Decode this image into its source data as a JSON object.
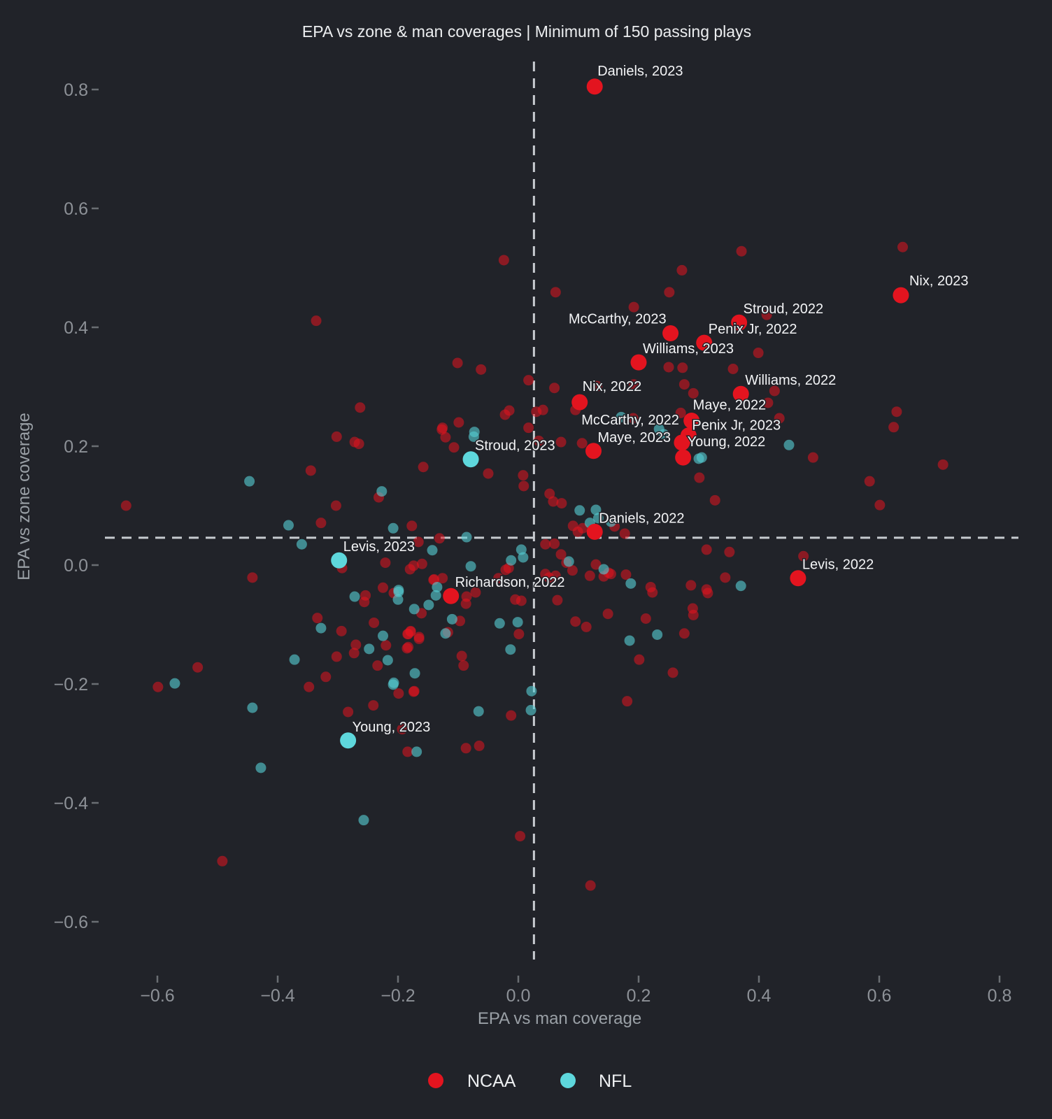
{
  "chart_data": {
    "type": "scatter",
    "title": "EPA vs zone & man coverages | Minimum of 150 passing plays",
    "xlabel": "EPA vs man coverage",
    "ylabel": "EPA vs zone coverage",
    "xlim": [
      -0.72,
      0.85
    ],
    "ylim": [
      -0.63,
      0.85
    ],
    "grid": false,
    "legend_position": "bottom-center",
    "x_ticks": [
      {
        "v": -0.6,
        "label": "−0.6"
      },
      {
        "v": -0.4,
        "label": "−0.4"
      },
      {
        "v": -0.2,
        "label": "−0.2"
      },
      {
        "v": 0.0,
        "label": "0.0"
      },
      {
        "v": 0.2,
        "label": "0.2"
      },
      {
        "v": 0.4,
        "label": "0.4"
      },
      {
        "v": 0.6,
        "label": "0.6"
      },
      {
        "v": 0.8,
        "label": "0.8"
      }
    ],
    "y_ticks": [
      {
        "v": 0.8,
        "label": "0.8"
      },
      {
        "v": 0.6,
        "label": "0.6"
      },
      {
        "v": 0.4,
        "label": "0.4"
      },
      {
        "v": 0.2,
        "label": "0.2"
      },
      {
        "v": 0.0,
        "label": "0.0"
      },
      {
        "v": -0.2,
        "label": "−0.2"
      },
      {
        "v": -0.4,
        "label": "−0.4"
      },
      {
        "v": -0.6,
        "label": "−0.6"
      }
    ],
    "reference_lines": {
      "x": 0.026,
      "y": 0.046
    },
    "colors": {
      "background": "#212329",
      "ncaa": "#e3141f",
      "nfl": "#56ccd2",
      "nfl_bright": "#5ed7dc",
      "dash_line": "#c7cbd0",
      "tick_mark": "#6a6e73",
      "text_primary": "#eceef0",
      "text_muted": "#8d9197"
    },
    "legend": [
      {
        "label": "NCAA",
        "league": "ncaa"
      },
      {
        "label": "NFL",
        "league": "nfl"
      }
    ],
    "labeled_points": [
      {
        "label": "Daniels, 2023",
        "league": "ncaa",
        "x": 0.127,
        "y": 0.805
      },
      {
        "label": "Nix, 2023",
        "league": "ncaa",
        "x": 0.636,
        "y": 0.454
      },
      {
        "label": "Stroud, 2022",
        "league": "ncaa",
        "x": 0.367,
        "y": 0.408
      },
      {
        "label": "McCarthy, 2023",
        "league": "ncaa",
        "x": 0.253,
        "y": 0.39
      },
      {
        "label": "Penix Jr, 2022",
        "league": "ncaa",
        "x": 0.309,
        "y": 0.374
      },
      {
        "label": "Williams, 2023",
        "league": "ncaa",
        "x": 0.2,
        "y": 0.341
      },
      {
        "label": "Williams, 2022",
        "league": "ncaa",
        "x": 0.37,
        "y": 0.288
      },
      {
        "label": "Nix, 2022",
        "league": "ncaa",
        "x": 0.102,
        "y": 0.274
      },
      {
        "label": "Maye, 2022",
        "league": "ncaa",
        "x": 0.288,
        "y": 0.243
      },
      {
        "label": "Penix Jr, 2023",
        "league": "ncaa",
        "x": 0.283,
        "y": 0.218
      },
      {
        "label": "McCarthy, 2022",
        "league": "ncaa",
        "x": 0.272,
        "y": 0.206
      },
      {
        "label": "Maye, 2023",
        "league": "ncaa",
        "x": 0.125,
        "y": 0.192
      },
      {
        "label": "Young, 2022",
        "league": "ncaa",
        "x": 0.274,
        "y": 0.181
      },
      {
        "label": "Stroud, 2023",
        "league": "nfl",
        "x": -0.079,
        "y": 0.178
      },
      {
        "label": "Daniels, 2022",
        "league": "ncaa",
        "x": 0.127,
        "y": 0.056
      },
      {
        "label": "Levis, 2023",
        "league": "nfl",
        "x": -0.298,
        "y": 0.008
      },
      {
        "label": "Levis, 2022",
        "league": "ncaa",
        "x": 0.465,
        "y": -0.022
      },
      {
        "label": "Richardson, 2022",
        "league": "ncaa",
        "x": -0.112,
        "y": -0.052
      },
      {
        "label": "Young, 2023",
        "league": "nfl",
        "x": -0.283,
        "y": -0.295
      }
    ],
    "ncaa_points": [
      [
        -0.336,
        0.411
      ],
      [
        -0.263,
        0.265
      ],
      [
        -0.302,
        0.216
      ],
      [
        -0.272,
        0.207
      ],
      [
        -0.265,
        0.204
      ],
      [
        -0.345,
        0.159
      ],
      [
        -0.158,
        0.165
      ],
      [
        -0.652,
        0.1
      ],
      [
        -0.328,
        0.071
      ],
      [
        -0.303,
        0.1
      ],
      [
        -0.232,
        0.114
      ],
      [
        -0.177,
        0.066
      ],
      [
        -0.293,
        -0.005
      ],
      [
        -0.221,
        0.004
      ],
      [
        -0.18,
        -0.007
      ],
      [
        -0.174,
        -0.001
      ],
      [
        -0.166,
        0.039
      ],
      [
        -0.442,
        -0.021
      ],
      [
        -0.225,
        -0.038
      ],
      [
        -0.207,
        -0.047
      ],
      [
        -0.254,
        -0.051
      ],
      [
        -0.256,
        -0.062
      ],
      [
        -0.161,
        -0.081
      ],
      [
        -0.334,
        -0.089
      ],
      [
        -0.294,
        -0.111
      ],
      [
        -0.24,
        -0.097
      ],
      [
        -0.27,
        -0.134
      ],
      [
        -0.273,
        -0.148
      ],
      [
        -0.22,
        -0.135
      ],
      [
        -0.183,
        -0.116
      ],
      [
        -0.179,
        -0.112
      ],
      [
        -0.183,
        -0.138
      ],
      [
        -0.165,
        -0.121
      ],
      [
        -0.302,
        -0.154
      ],
      [
        -0.234,
        -0.169
      ],
      [
        -0.32,
        -0.188
      ],
      [
        -0.348,
        -0.205
      ],
      [
        -0.533,
        -0.172
      ],
      [
        -0.599,
        -0.205
      ],
      [
        -0.199,
        -0.216
      ],
      [
        -0.174,
        -0.213
      ],
      [
        -0.241,
        -0.236
      ],
      [
        -0.283,
        -0.247
      ],
      [
        -0.024,
        0.513
      ],
      [
        0.062,
        0.459
      ],
      [
        0.272,
        0.496
      ],
      [
        0.251,
        0.459
      ],
      [
        0.192,
        0.434
      ],
      [
        0.25,
        0.333
      ],
      [
        0.273,
        0.332
      ],
      [
        -0.101,
        0.34
      ],
      [
        -0.062,
        0.329
      ],
      [
        0.017,
        0.311
      ],
      [
        0.06,
        0.298
      ],
      [
        0.131,
        0.301
      ],
      [
        0.095,
        0.261
      ],
      [
        0.192,
        0.304
      ],
      [
        0.276,
        0.304
      ],
      [
        0.291,
        0.289
      ],
      [
        0.041,
        0.261
      ],
      [
        0.03,
        0.258
      ],
      [
        -0.015,
        0.26
      ],
      [
        -0.022,
        0.253
      ],
      [
        -0.099,
        0.24
      ],
      [
        -0.126,
        0.231
      ],
      [
        0.191,
        0.247
      ],
      [
        0.27,
        0.256
      ],
      [
        0.017,
        0.231
      ],
      [
        0.106,
        0.205
      ],
      [
        0.371,
        0.528
      ],
      [
        0.639,
        0.535
      ],
      [
        0.413,
        0.421
      ],
      [
        0.399,
        0.357
      ],
      [
        0.357,
        0.33
      ],
      [
        0.415,
        0.273
      ],
      [
        0.434,
        0.247
      ],
      [
        0.426,
        0.293
      ],
      [
        0.629,
        0.258
      ],
      [
        0.624,
        0.232
      ],
      [
        0.706,
        0.169
      ],
      [
        0.584,
        0.141
      ],
      [
        0.601,
        0.101
      ],
      [
        0.49,
        0.181
      ],
      [
        0.327,
        0.109
      ],
      [
        0.301,
        0.147
      ],
      [
        0.313,
        0.026
      ],
      [
        0.351,
        0.022
      ],
      [
        0.474,
        0.015
      ],
      [
        0.344,
        -0.021
      ],
      [
        0.315,
        -0.047
      ],
      [
        -0.05,
        0.154
      ],
      [
        0.008,
        0.151
      ],
      [
        0.009,
        0.133
      ],
      [
        0.034,
        0.209
      ],
      [
        0.071,
        0.207
      ],
      [
        0.052,
        0.12
      ],
      [
        0.058,
        0.107
      ],
      [
        0.072,
        0.104
      ],
      [
        0.091,
        0.066
      ],
      [
        0.099,
        0.056
      ],
      [
        0.107,
        0.062
      ],
      [
        0.045,
        0.035
      ],
      [
        0.06,
        0.036
      ],
      [
        0.16,
        0.065
      ],
      [
        0.177,
        0.053
      ],
      [
        0.071,
        0.018
      ],
      [
        0.08,
        0.004
      ],
      [
        0.09,
        -0.009
      ],
      [
        0.142,
        -0.019
      ],
      [
        0.154,
        -0.015
      ],
      [
        0.179,
        -0.016
      ],
      [
        0.129,
        0.001
      ],
      [
        0.045,
        -0.015
      ],
      [
        0.051,
        -0.021
      ],
      [
        -0.021,
        -0.008
      ],
      [
        -0.016,
        -0.005
      ],
      [
        -0.107,
        0.198
      ],
      [
        -0.121,
        0.215
      ],
      [
        -0.127,
        0.228
      ],
      [
        -0.131,
        0.045
      ],
      [
        -0.16,
        0.002
      ],
      [
        -0.141,
        -0.025
      ],
      [
        -0.126,
        -0.022
      ],
      [
        -0.14,
        -0.024
      ],
      [
        -0.086,
        -0.053
      ],
      [
        -0.087,
        -0.065
      ],
      [
        -0.071,
        -0.046
      ],
      [
        -0.033,
        -0.022
      ],
      [
        -0.005,
        -0.058
      ],
      [
        0.005,
        -0.06
      ],
      [
        -0.097,
        -0.094
      ],
      [
        0.001,
        -0.116
      ],
      [
        -0.117,
        -0.113
      ],
      [
        -0.179,
        -0.111
      ],
      [
        -0.184,
        -0.116
      ],
      [
        -0.165,
        -0.124
      ],
      [
        -0.185,
        -0.14
      ],
      [
        -0.094,
        -0.153
      ],
      [
        -0.091,
        -0.169
      ],
      [
        -0.173,
        -0.212
      ],
      [
        -0.012,
        -0.253
      ],
      [
        -0.087,
        -0.308
      ],
      [
        -0.065,
        -0.304
      ],
      [
        -0.184,
        -0.314
      ],
      [
        0.062,
        -0.018
      ],
      [
        0.065,
        -0.059
      ],
      [
        0.119,
        -0.018
      ],
      [
        0.095,
        -0.095
      ],
      [
        0.113,
        -0.104
      ],
      [
        0.149,
        -0.082
      ],
      [
        0.22,
        -0.037
      ],
      [
        0.223,
        -0.046
      ],
      [
        0.212,
        -0.09
      ],
      [
        0.201,
        -0.159
      ],
      [
        0.257,
        -0.181
      ],
      [
        0.181,
        -0.229
      ],
      [
        0.287,
        -0.034
      ],
      [
        0.313,
        -0.041
      ],
      [
        0.29,
        -0.073
      ],
      [
        0.291,
        -0.084
      ],
      [
        0.276,
        -0.115
      ],
      [
        0.15,
        -0.013
      ],
      [
        -0.193,
        -0.276
      ],
      [
        -0.492,
        -0.498
      ],
      [
        0.003,
        -0.456
      ],
      [
        0.12,
        -0.539
      ]
    ],
    "nfl_points": [
      [
        -0.447,
        0.141
      ],
      [
        -0.382,
        0.067
      ],
      [
        -0.227,
        0.124
      ],
      [
        -0.208,
        0.062
      ],
      [
        -0.36,
        0.035
      ],
      [
        -0.143,
        0.025
      ],
      [
        -0.199,
        -0.045
      ],
      [
        -0.272,
        -0.053
      ],
      [
        -0.173,
        -0.074
      ],
      [
        -0.149,
        -0.067
      ],
      [
        -0.328,
        -0.106
      ],
      [
        -0.248,
        -0.141
      ],
      [
        -0.225,
        -0.119
      ],
      [
        -0.217,
        -0.16
      ],
      [
        -0.372,
        -0.159
      ],
      [
        -0.172,
        -0.182
      ],
      [
        -0.571,
        -0.199
      ],
      [
        -0.208,
        -0.201
      ],
      [
        -0.442,
        -0.24
      ],
      [
        -0.428,
        -0.341
      ],
      [
        -0.257,
        -0.429
      ],
      [
        0.171,
        0.249
      ],
      [
        0.234,
        0.229
      ],
      [
        0.242,
        0.22
      ],
      [
        0.3,
        0.179
      ],
      [
        0.45,
        0.202
      ],
      [
        0.305,
        0.181
      ],
      [
        0.37,
        -0.035
      ],
      [
        -0.074,
        0.216
      ],
      [
        -0.073,
        0.224
      ],
      [
        0.005,
        0.026
      ],
      [
        0.008,
        0.013
      ],
      [
        0.102,
        0.092
      ],
      [
        0.129,
        0.093
      ],
      [
        0.133,
        0.079
      ],
      [
        0.119,
        0.071
      ],
      [
        0.154,
        0.073
      ],
      [
        0.142,
        -0.007
      ],
      [
        0.187,
        -0.031
      ],
      [
        0.084,
        0.006
      ],
      [
        -0.012,
        0.008
      ],
      [
        -0.086,
        0.047
      ],
      [
        -0.079,
        -0.002
      ],
      [
        -0.199,
        -0.042
      ],
      [
        -0.2,
        -0.058
      ],
      [
        -0.135,
        -0.037
      ],
      [
        -0.137,
        -0.051
      ],
      [
        -0.11,
        -0.091
      ],
      [
        -0.031,
        -0.098
      ],
      [
        -0.001,
        -0.096
      ],
      [
        -0.121,
        -0.115
      ],
      [
        -0.013,
        -0.142
      ],
      [
        0.022,
        -0.212
      ],
      [
        0.021,
        -0.244
      ],
      [
        -0.066,
        -0.246
      ],
      [
        -0.169,
        -0.314
      ],
      [
        0.185,
        -0.127
      ],
      [
        0.231,
        -0.117
      ],
      [
        -0.207,
        -0.198
      ]
    ]
  }
}
